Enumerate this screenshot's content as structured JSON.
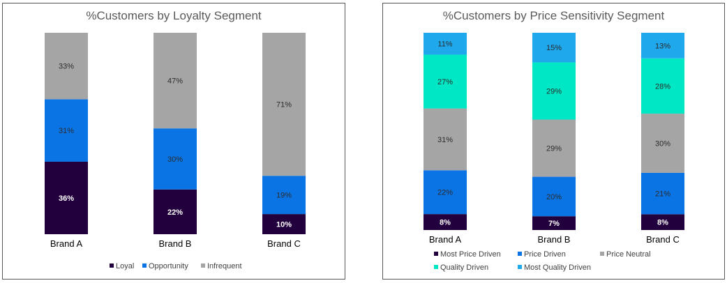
{
  "colors": {
    "loyal": "#22003d",
    "opportunity": "#0b74e4",
    "infrequent": "#a5a5a5",
    "most_price_driven": "#22003d",
    "price_driven": "#0b74e4",
    "price_neutral": "#a5a5a5",
    "quality_driven": "#00e7c5",
    "most_quality_driven": "#1fa8ec"
  },
  "chart_data": [
    {
      "type": "bar",
      "stacked": true,
      "title": "%Customers by Loyalty Segment",
      "categories": [
        "Brand A",
        "Brand B",
        "Brand C"
      ],
      "series": [
        {
          "name": "Loyal",
          "values": [
            36,
            22,
            10
          ],
          "labels": [
            "36%",
            "22%",
            "10%"
          ],
          "color": "#22003d",
          "label_color": "#ffffff"
        },
        {
          "name": "Opportunity",
          "values": [
            31,
            30,
            19
          ],
          "labels": [
            "31%",
            "30%",
            "19%"
          ],
          "color": "#0b74e4",
          "label_color": "#2b2b2b"
        },
        {
          "name": "Infrequent",
          "values": [
            33,
            47,
            71
          ],
          "labels": [
            "33%",
            "47%",
            "71%"
          ],
          "color": "#a5a5a5",
          "label_color": "#2b2b2b"
        }
      ],
      "legend_position": "bottom",
      "grid": false
    },
    {
      "type": "bar",
      "stacked": true,
      "title": "%Customers by Price Sensitivity Segment",
      "categories": [
        "Brand A",
        "Brand B",
        "Brand C"
      ],
      "series": [
        {
          "name": "Most Price Driven",
          "values": [
            8,
            7,
            8
          ],
          "labels": [
            "8%",
            "7%",
            "8%"
          ],
          "color": "#22003d",
          "label_color": "#ffffff"
        },
        {
          "name": "Price Driven",
          "values": [
            22,
            20,
            21
          ],
          "labels": [
            "22%",
            "20%",
            "21%"
          ],
          "color": "#0b74e4",
          "label_color": "#2b2b2b"
        },
        {
          "name": "Price Neutral",
          "values": [
            31,
            29,
            30
          ],
          "labels": [
            "31%",
            "29%",
            "30%"
          ],
          "color": "#a5a5a5",
          "label_color": "#2b2b2b"
        },
        {
          "name": "Quality Driven",
          "values": [
            27,
            29,
            28
          ],
          "labels": [
            "27%",
            "29%",
            "28%"
          ],
          "color": "#00e7c5",
          "label_color": "#2b2b2b"
        },
        {
          "name": "Most Quality Driven",
          "values": [
            11,
            15,
            13
          ],
          "labels": [
            "11%",
            "15%",
            "13%"
          ],
          "color": "#1fa8ec",
          "label_color": "#2b2b2b"
        }
      ],
      "legend_position": "bottom",
      "grid": false
    }
  ]
}
